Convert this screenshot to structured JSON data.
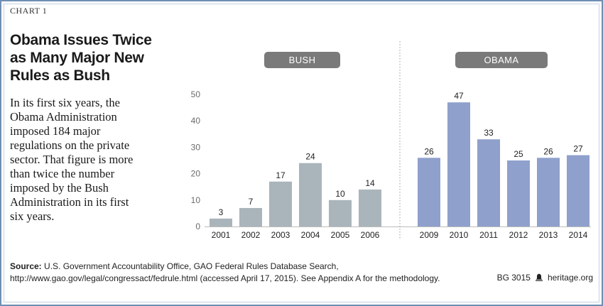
{
  "header": {
    "chart_number": "CHART 1",
    "title": "Obama Issues Twice as Many Major New Rules as Bush"
  },
  "description": "In its first six years, the Obama Administration imposed 184 major regulations on the private sector. That figure is more than twice the number imposed by the Bush Administration in its first six years.",
  "footer": {
    "source_label": "Source:",
    "source_text": "U.S. Government Accountability Office, GAO Federal Rules Database Search, http://www.gao.gov/legal/congressact/fedrule.html (accessed April 17, 2015). See Appendix A for the methodology.",
    "report_id": "BG 3015",
    "site": "heritage.org"
  },
  "colors": {
    "bush_bar": "#aab5bb",
    "obama_bar": "#8fa0cc",
    "group_pill": "#7a7a7a",
    "frame": "#6f8fb3"
  },
  "chart_data": {
    "type": "bar",
    "ylim": [
      0,
      50
    ],
    "yticks": [
      0,
      10,
      20,
      30,
      40,
      50
    ],
    "grid": false,
    "groups": [
      {
        "name": "BUSH",
        "categories": [
          "2001",
          "2002",
          "2003",
          "2004",
          "2005",
          "2006"
        ],
        "values": [
          3,
          7,
          17,
          24,
          10,
          14
        ]
      },
      {
        "name": "OBAMA",
        "categories": [
          "2009",
          "2010",
          "2011",
          "2012",
          "2013",
          "2014"
        ],
        "values": [
          26,
          47,
          33,
          25,
          26,
          27
        ]
      }
    ]
  }
}
